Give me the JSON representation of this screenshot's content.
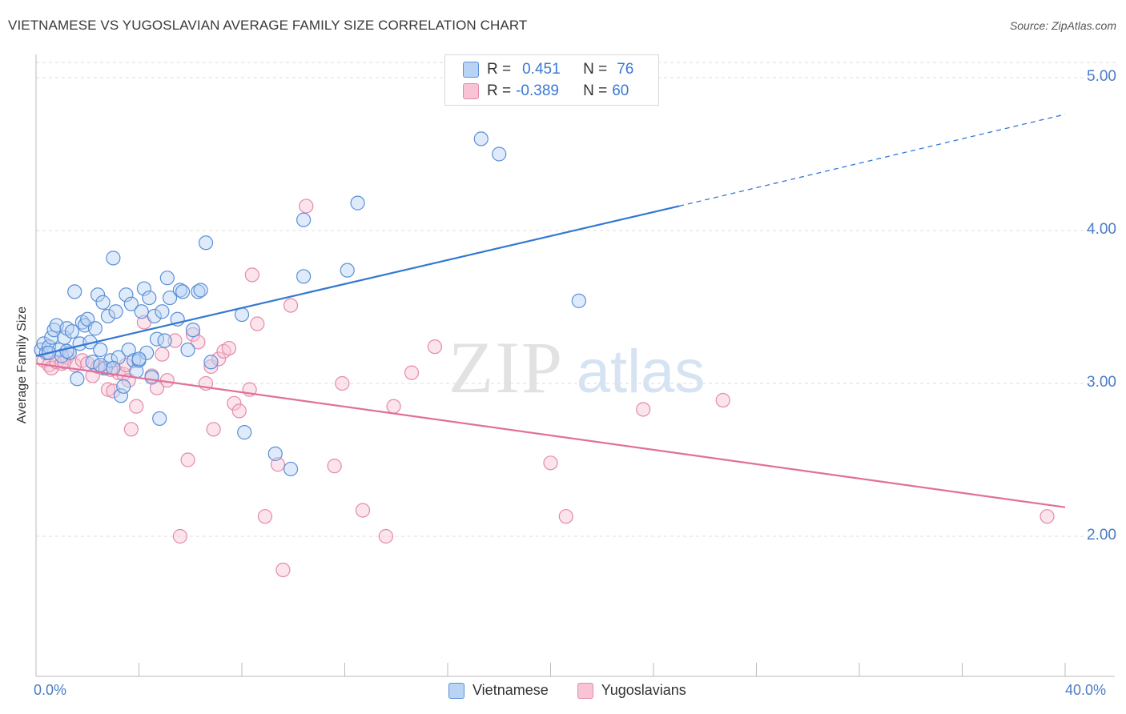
{
  "title": "VIETNAMESE VS YUGOSLAVIAN AVERAGE FAMILY SIZE CORRELATION CHART",
  "source": "Source: ZipAtlas.com",
  "watermark": {
    "zip": "ZIP",
    "atlas": "atlas"
  },
  "legend_top": {
    "rows": [
      {
        "r_label": "R =",
        "r_value": "0.451",
        "n_label": "N =",
        "n_value": "76"
      },
      {
        "r_label": "R =",
        "r_value": "-0.389",
        "n_label": "N =",
        "n_value": "60"
      }
    ]
  },
  "legend_bottom": [
    "Vietnamese",
    "Yugoslavians"
  ],
  "colors": {
    "blue_fill": "#b9d3f5",
    "blue_stroke": "#5b8fd6",
    "blue_line": "#3478d2",
    "pink_fill": "#f7c3d5",
    "pink_stroke": "#e48aab",
    "pink_line": "#e0709a",
    "grid": "#dddddd",
    "axis_text": "#4a7cc7"
  },
  "chart_data": {
    "type": "scatter",
    "title": "VIETNAMESE VS YUGOSLAVIAN AVERAGE FAMILY SIZE CORRELATION CHART",
    "xlabel": "",
    "ylabel": "Average Family Size",
    "xlim": [
      0,
      40
    ],
    "ylim": [
      1.2,
      5.2
    ],
    "x_tick_labels": [
      "0.0%",
      "40.0%"
    ],
    "y_ticks": [
      2.0,
      3.0,
      4.0,
      5.0
    ],
    "y_tick_labels": [
      "2.00",
      "3.00",
      "4.00",
      "5.00"
    ],
    "series": [
      {
        "name": "Vietnamese",
        "r": 0.451,
        "n": 76,
        "trend": {
          "x0": 0,
          "y0": 3.18,
          "x1": 25,
          "y1": 4.16,
          "dash_to_x": 40,
          "dash_to_y": 4.76
        },
        "points": [
          [
            0.2,
            3.22
          ],
          [
            0.3,
            3.26
          ],
          [
            0.4,
            3.2
          ],
          [
            0.5,
            3.24
          ],
          [
            0.6,
            3.3
          ],
          [
            0.7,
            3.35
          ],
          [
            0.8,
            3.38
          ],
          [
            0.9,
            3.22
          ],
          [
            1.0,
            3.18
          ],
          [
            1.1,
            3.3
          ],
          [
            1.2,
            3.36
          ],
          [
            1.3,
            3.2
          ],
          [
            1.4,
            3.34
          ],
          [
            1.5,
            3.6
          ],
          [
            1.6,
            3.03
          ],
          [
            1.7,
            3.26
          ],
          [
            1.8,
            3.4
          ],
          [
            1.9,
            3.38
          ],
          [
            2.0,
            3.42
          ],
          [
            2.1,
            3.27
          ],
          [
            2.2,
            3.14
          ],
          [
            2.3,
            3.36
          ],
          [
            2.4,
            3.58
          ],
          [
            2.5,
            3.22
          ],
          [
            2.6,
            3.53
          ],
          [
            2.7,
            3.1
          ],
          [
            2.8,
            3.44
          ],
          [
            2.9,
            3.15
          ],
          [
            3.0,
            3.82
          ],
          [
            3.1,
            3.47
          ],
          [
            3.2,
            3.17
          ],
          [
            3.3,
            2.92
          ],
          [
            3.4,
            2.98
          ],
          [
            3.5,
            3.58
          ],
          [
            3.6,
            3.22
          ],
          [
            3.7,
            3.52
          ],
          [
            3.8,
            3.15
          ],
          [
            3.9,
            3.08
          ],
          [
            4.0,
            3.15
          ],
          [
            4.1,
            3.47
          ],
          [
            4.2,
            3.62
          ],
          [
            4.3,
            3.2
          ],
          [
            4.4,
            3.56
          ],
          [
            4.5,
            3.04
          ],
          [
            4.6,
            3.44
          ],
          [
            4.7,
            3.29
          ],
          [
            4.8,
            2.77
          ],
          [
            4.9,
            3.47
          ],
          [
            5.0,
            3.28
          ],
          [
            5.1,
            3.69
          ],
          [
            5.2,
            3.56
          ],
          [
            5.5,
            3.42
          ],
          [
            5.6,
            3.61
          ],
          [
            5.7,
            3.6
          ],
          [
            5.9,
            3.22
          ],
          [
            6.1,
            3.35
          ],
          [
            6.3,
            3.6
          ],
          [
            6.4,
            3.61
          ],
          [
            6.6,
            3.92
          ],
          [
            6.8,
            3.14
          ],
          [
            8.0,
            3.45
          ],
          [
            8.1,
            2.68
          ],
          [
            9.3,
            2.54
          ],
          [
            9.9,
            2.44
          ],
          [
            10.4,
            3.7
          ],
          [
            10.4,
            4.07
          ],
          [
            12.1,
            3.74
          ],
          [
            12.5,
            4.18
          ],
          [
            17.3,
            4.6
          ],
          [
            18.0,
            4.5
          ],
          [
            21.1,
            3.54
          ],
          [
            0.5,
            3.2
          ],
          [
            1.2,
            3.21
          ],
          [
            2.5,
            3.12
          ],
          [
            3.0,
            3.1
          ],
          [
            4.0,
            3.16
          ]
        ]
      },
      {
        "name": "Yugoslavians",
        "r": -0.389,
        "n": 60,
        "trend": {
          "x0": 0,
          "y0": 3.13,
          "x1": 40,
          "y1": 2.19
        },
        "points": [
          [
            0.3,
            3.15
          ],
          [
            0.5,
            3.12
          ],
          [
            0.6,
            3.1
          ],
          [
            0.8,
            3.14
          ],
          [
            1.0,
            3.13
          ],
          [
            1.2,
            3.17
          ],
          [
            1.5,
            3.12
          ],
          [
            1.8,
            3.15
          ],
          [
            2.0,
            3.13
          ],
          [
            2.2,
            3.05
          ],
          [
            2.4,
            3.11
          ],
          [
            2.6,
            3.1
          ],
          [
            2.8,
            2.96
          ],
          [
            3.0,
            2.95
          ],
          [
            3.2,
            3.07
          ],
          [
            3.4,
            3.06
          ],
          [
            3.6,
            3.02
          ],
          [
            3.7,
            2.7
          ],
          [
            3.9,
            2.85
          ],
          [
            4.2,
            3.4
          ],
          [
            4.5,
            3.05
          ],
          [
            4.7,
            2.97
          ],
          [
            4.9,
            3.19
          ],
          [
            5.1,
            3.02
          ],
          [
            5.4,
            3.28
          ],
          [
            5.6,
            2.0
          ],
          [
            5.9,
            2.5
          ],
          [
            6.1,
            3.32
          ],
          [
            6.3,
            3.27
          ],
          [
            6.6,
            3.0
          ],
          [
            6.8,
            3.11
          ],
          [
            6.9,
            2.7
          ],
          [
            7.1,
            3.16
          ],
          [
            7.3,
            3.21
          ],
          [
            7.5,
            3.23
          ],
          [
            7.7,
            2.87
          ],
          [
            7.9,
            2.82
          ],
          [
            8.3,
            2.96
          ],
          [
            8.4,
            3.71
          ],
          [
            8.6,
            3.39
          ],
          [
            8.9,
            2.13
          ],
          [
            9.4,
            2.47
          ],
          [
            9.6,
            1.78
          ],
          [
            9.9,
            3.51
          ],
          [
            10.5,
            4.16
          ],
          [
            11.6,
            2.46
          ],
          [
            11.9,
            3.0
          ],
          [
            12.7,
            2.17
          ],
          [
            13.6,
            2.0
          ],
          [
            13.9,
            2.85
          ],
          [
            14.6,
            3.07
          ],
          [
            15.5,
            3.24
          ],
          [
            20.0,
            2.48
          ],
          [
            20.6,
            2.13
          ],
          [
            23.6,
            2.83
          ],
          [
            26.7,
            2.89
          ],
          [
            39.3,
            2.13
          ],
          [
            1.1,
            3.14
          ],
          [
            2.9,
            3.09
          ],
          [
            3.5,
            3.12
          ]
        ]
      }
    ]
  }
}
